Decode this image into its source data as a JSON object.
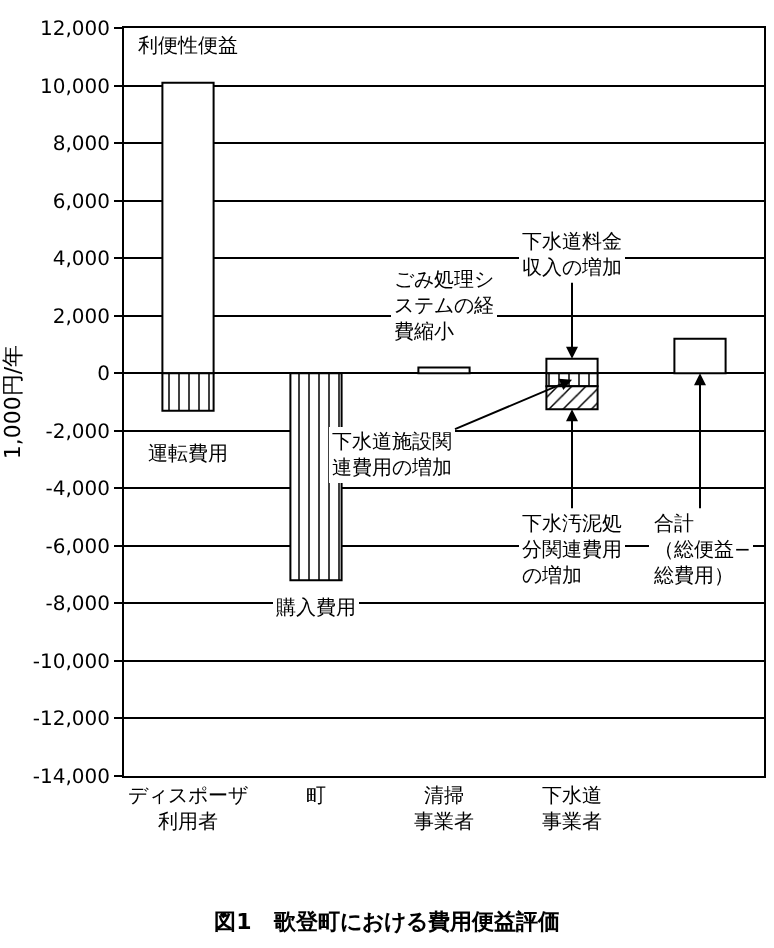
{
  "chart_data": {
    "type": "bar",
    "stacked": true,
    "title": "図1　歌登町における費用便益評価",
    "ylabel": "1,000円/年",
    "categories": [
      "ディスポーザ利用者",
      "町",
      "清掃事業者",
      "下水道事業者",
      null
    ],
    "series": [
      {
        "color": "#ffffff",
        "values": [
          10100,
          null,
          200,
          500,
          1200
        ]
      },
      {
        "color": "#000000",
        "values": [
          -1300,
          -7200,
          null,
          -450,
          null
        ]
      },
      {
        "color": "#000000",
        "values": [
          null,
          null,
          null,
          -800,
          null
        ]
      }
    ],
    "ylim": [
      -14000,
      12000
    ],
    "yticks": [
      {
        "value": -14000,
        "label": "-14,000"
      },
      {
        "value": -12000,
        "label": "-12,000"
      },
      {
        "value": -10000,
        "label": "-10,000"
      },
      {
        "value": -8000,
        "label": "-8,000"
      },
      {
        "value": -6000,
        "label": "-6,000"
      },
      {
        "value": -4000,
        "label": "-4,000"
      },
      {
        "value": -2000,
        "label": "-2,000"
      },
      0,
      {
        "value": 2000,
        "label": "2,000"
      },
      {
        "value": 4000,
        "label": "4,000"
      },
      {
        "value": 6000,
        "label": "6,000"
      },
      {
        "value": 8000,
        "label": "8,000"
      },
      {
        "value": 10000,
        "label": "10,000"
      },
      {
        "value": 12000,
        "label": "12,000"
      }
    ],
    "grid": "y",
    "annotations": [
      {
        "text": "利便性便益",
        "x": "ディスポーザ利用者",
        "y": 10100
      },
      {
        "text": "運転費用",
        "x": "ディスポーザ利用者",
        "y": -1300
      },
      {
        "text": "購入費用",
        "x": "町",
        "y": -7200
      },
      {
        "text": "ごみ処理システムの経費縮小",
        "x": "清掃事業者",
        "y": 200
      },
      {
        "text": "下水道料金収入の増加",
        "x": "下水道事業者",
        "y": 500
      },
      {
        "text": "下水道施設関連費用の増加",
        "x": "下水道事業者",
        "y": -225
      },
      {
        "text": "下水汚泥処分関連費用の増加",
        "x": "下水道事業者",
        "y": -1250
      },
      {
        "text": "合計（総便益−総費用）",
        "y": 0
      }
    ]
  }
}
